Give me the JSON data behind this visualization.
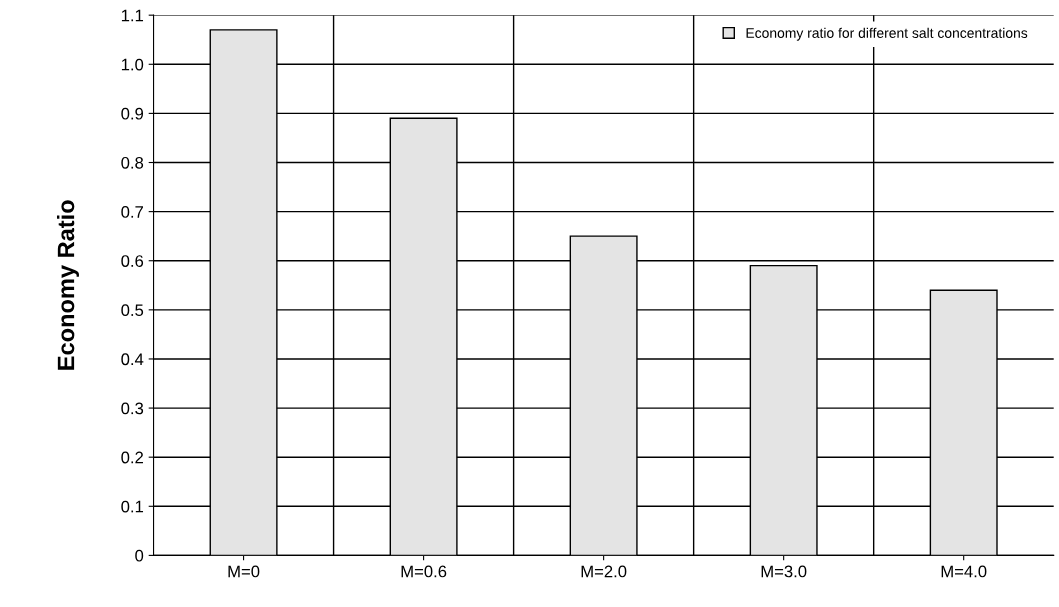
{
  "chart_data": {
    "type": "bar",
    "ylabel": "Economy Ratio",
    "categories": [
      "M=0",
      "M=0.6",
      "M=2.0",
      "M=3.0",
      "M=4.0"
    ],
    "series": [
      {
        "name": "Economy ratio for different salt concentrations",
        "color": "#e4e4e4",
        "values": [
          1.07,
          0.89,
          0.65,
          0.59,
          0.54
        ]
      }
    ],
    "ylim": [
      0,
      1.1
    ],
    "yticks": [
      0,
      0.1,
      0.2,
      0.3,
      0.4,
      0.5,
      0.6,
      0.7,
      0.8,
      0.9,
      {
        "value": 1,
        "label": "1.0"
      },
      1.1
    ],
    "grid": true,
    "legend": "top right"
  }
}
